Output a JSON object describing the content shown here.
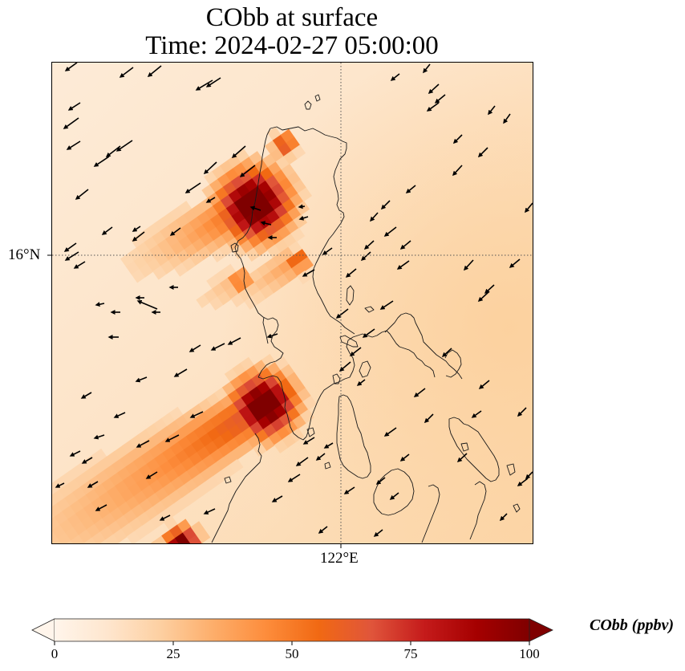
{
  "figure": {
    "title_line1": "CObb at surface",
    "title_line2": "Time: 2024-02-27 05:00:00"
  },
  "chart_data": {
    "type": "heatmap",
    "title": "CObb at surface",
    "subtitle": "Time: 2024-02-27 05:00:00",
    "variable": "CObb",
    "units": "ppbv",
    "overlay": "wind vectors (quiver), coastlines, lat/lon gridlines",
    "axes": {
      "lat_ticks": [
        {
          "value": 16,
          "label": "16°N"
        }
      ],
      "lon_ticks": [
        {
          "value": 122,
          "label": "122°E"
        }
      ],
      "grid": "dotted"
    },
    "colorbar": {
      "label": "CObb (ppbv)",
      "range": [
        0,
        100
      ],
      "extend": "both",
      "orientation": "horizontal",
      "placement": "bottom",
      "ticks": [
        {
          "value": 0,
          "label": "0"
        },
        {
          "value": 25,
          "label": "25"
        },
        {
          "value": 50,
          "label": "50"
        },
        {
          "value": 75,
          "label": "75"
        },
        {
          "value": 100,
          "label": "100"
        }
      ],
      "colormap": [
        "#fff5eb",
        "#fee6ce",
        "#fdd0a2",
        "#fdae6b",
        "#fd8d3c",
        "#f16913",
        "#e0553b",
        "#c51b1b",
        "#a50000",
        "#7f0000"
      ]
    },
    "features": [
      {
        "name": "northern plume",
        "peak_ppbv": 100,
        "direction": "to west-southwest"
      },
      {
        "name": "southern plume",
        "peak_ppbv": 100,
        "direction": "to west-southwest"
      },
      {
        "name": "southwest plume tail",
        "peak_ppbv": 100,
        "direction": "to southwest"
      }
    ],
    "background_ppbv_range": [
      2,
      25
    ],
    "wind_direction": "predominantly from the northeast (arrows pointing southwest/west)"
  },
  "colors": {
    "frame": "#000000",
    "coast": "#1a1a1a",
    "arrow": "#000000",
    "grid": "#555555"
  }
}
